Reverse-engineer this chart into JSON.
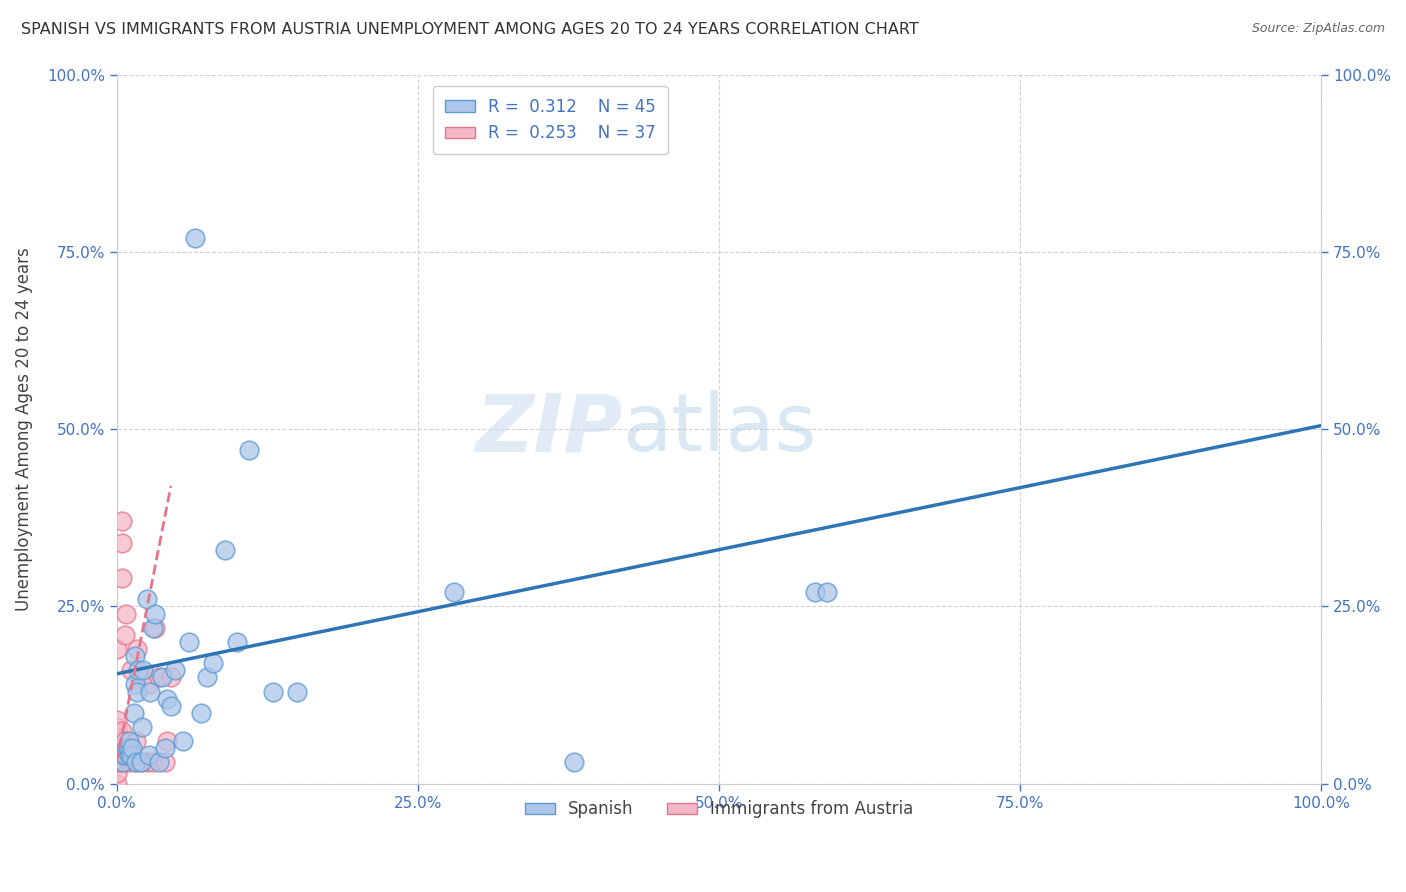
{
  "title": "SPANISH VS IMMIGRANTS FROM AUSTRIA UNEMPLOYMENT AMONG AGES 20 TO 24 YEARS CORRELATION CHART",
  "source": "Source: ZipAtlas.com",
  "ylabel": "Unemployment Among Ages 20 to 24 years",
  "xlim": [
    0,
    1.0
  ],
  "ylim": [
    0,
    1.0
  ],
  "xticks": [
    0.0,
    0.25,
    0.5,
    0.75,
    1.0
  ],
  "yticks": [
    0.0,
    0.25,
    0.5,
    0.75,
    1.0
  ],
  "xticklabels": [
    "0.0%",
    "25.0%",
    "50.0%",
    "75.0%",
    "100.0%"
  ],
  "yticklabels": [
    "0.0%",
    "25.0%",
    "50.0%",
    "75.0%",
    "100.0%"
  ],
  "spanish_color": "#aec6e8",
  "spanish_edge": "#5b9bd5",
  "austria_color": "#f4b8c8",
  "austria_edge": "#e8748a",
  "trend_blue": "#2e75b6",
  "trend_pink": "#e8748a",
  "spanish_R": "0.312",
  "spanish_N": "45",
  "austria_R": "0.253",
  "austria_N": "37",
  "background_color": "#ffffff",
  "grid_color": "#c8c8c8",
  "watermark_zip": "ZIP",
  "watermark_atlas": "atlas",
  "legend_label_spanish": "Spanish",
  "legend_label_austria": "Immigrants from Austria",
  "spanish_x": [
    0.005,
    0.005,
    0.007,
    0.008,
    0.009,
    0.01,
    0.01,
    0.01,
    0.012,
    0.013,
    0.014,
    0.015,
    0.015,
    0.016,
    0.017,
    0.018,
    0.02,
    0.021,
    0.022,
    0.025,
    0.027,
    0.028,
    0.03,
    0.032,
    0.035,
    0.038,
    0.04,
    0.042,
    0.045,
    0.048,
    0.055,
    0.06,
    0.065,
    0.07,
    0.075,
    0.08,
    0.09,
    0.1,
    0.11,
    0.13,
    0.15,
    0.28,
    0.38,
    0.58,
    0.59
  ],
  "spanish_y": [
    0.03,
    0.04,
    0.04,
    0.05,
    0.05,
    0.04,
    0.05,
    0.06,
    0.04,
    0.05,
    0.1,
    0.14,
    0.18,
    0.03,
    0.13,
    0.16,
    0.03,
    0.08,
    0.16,
    0.26,
    0.04,
    0.13,
    0.22,
    0.24,
    0.03,
    0.15,
    0.05,
    0.12,
    0.11,
    0.16,
    0.06,
    0.2,
    0.77,
    0.1,
    0.15,
    0.17,
    0.33,
    0.2,
    0.47,
    0.13,
    0.13,
    0.27,
    0.03,
    0.27,
    0.27
  ],
  "austria_x": [
    0.0,
    0.0,
    0.0,
    0.0,
    0.0,
    0.0,
    0.0,
    0.0,
    0.0,
    0.003,
    0.003,
    0.003,
    0.004,
    0.004,
    0.004,
    0.004,
    0.006,
    0.006,
    0.007,
    0.007,
    0.008,
    0.01,
    0.01,
    0.012,
    0.015,
    0.016,
    0.017,
    0.02,
    0.022,
    0.025,
    0.027,
    0.03,
    0.032,
    0.035,
    0.04,
    0.042,
    0.045
  ],
  "austria_y": [
    0.0,
    0.015,
    0.03,
    0.05,
    0.055,
    0.06,
    0.08,
    0.09,
    0.19,
    0.03,
    0.045,
    0.06,
    0.075,
    0.29,
    0.34,
    0.37,
    0.03,
    0.045,
    0.06,
    0.21,
    0.24,
    0.03,
    0.045,
    0.16,
    0.03,
    0.06,
    0.19,
    0.03,
    0.15,
    0.03,
    0.14,
    0.03,
    0.22,
    0.15,
    0.03,
    0.06,
    0.15
  ],
  "blue_trend_x0": 0.0,
  "blue_trend_y0": 0.155,
  "blue_trend_x1": 1.0,
  "blue_trend_y1": 0.505,
  "pink_trend_x0": 0.0,
  "pink_trend_y0": 0.03,
  "pink_trend_x1": 0.045,
  "pink_trend_y1": 0.42
}
